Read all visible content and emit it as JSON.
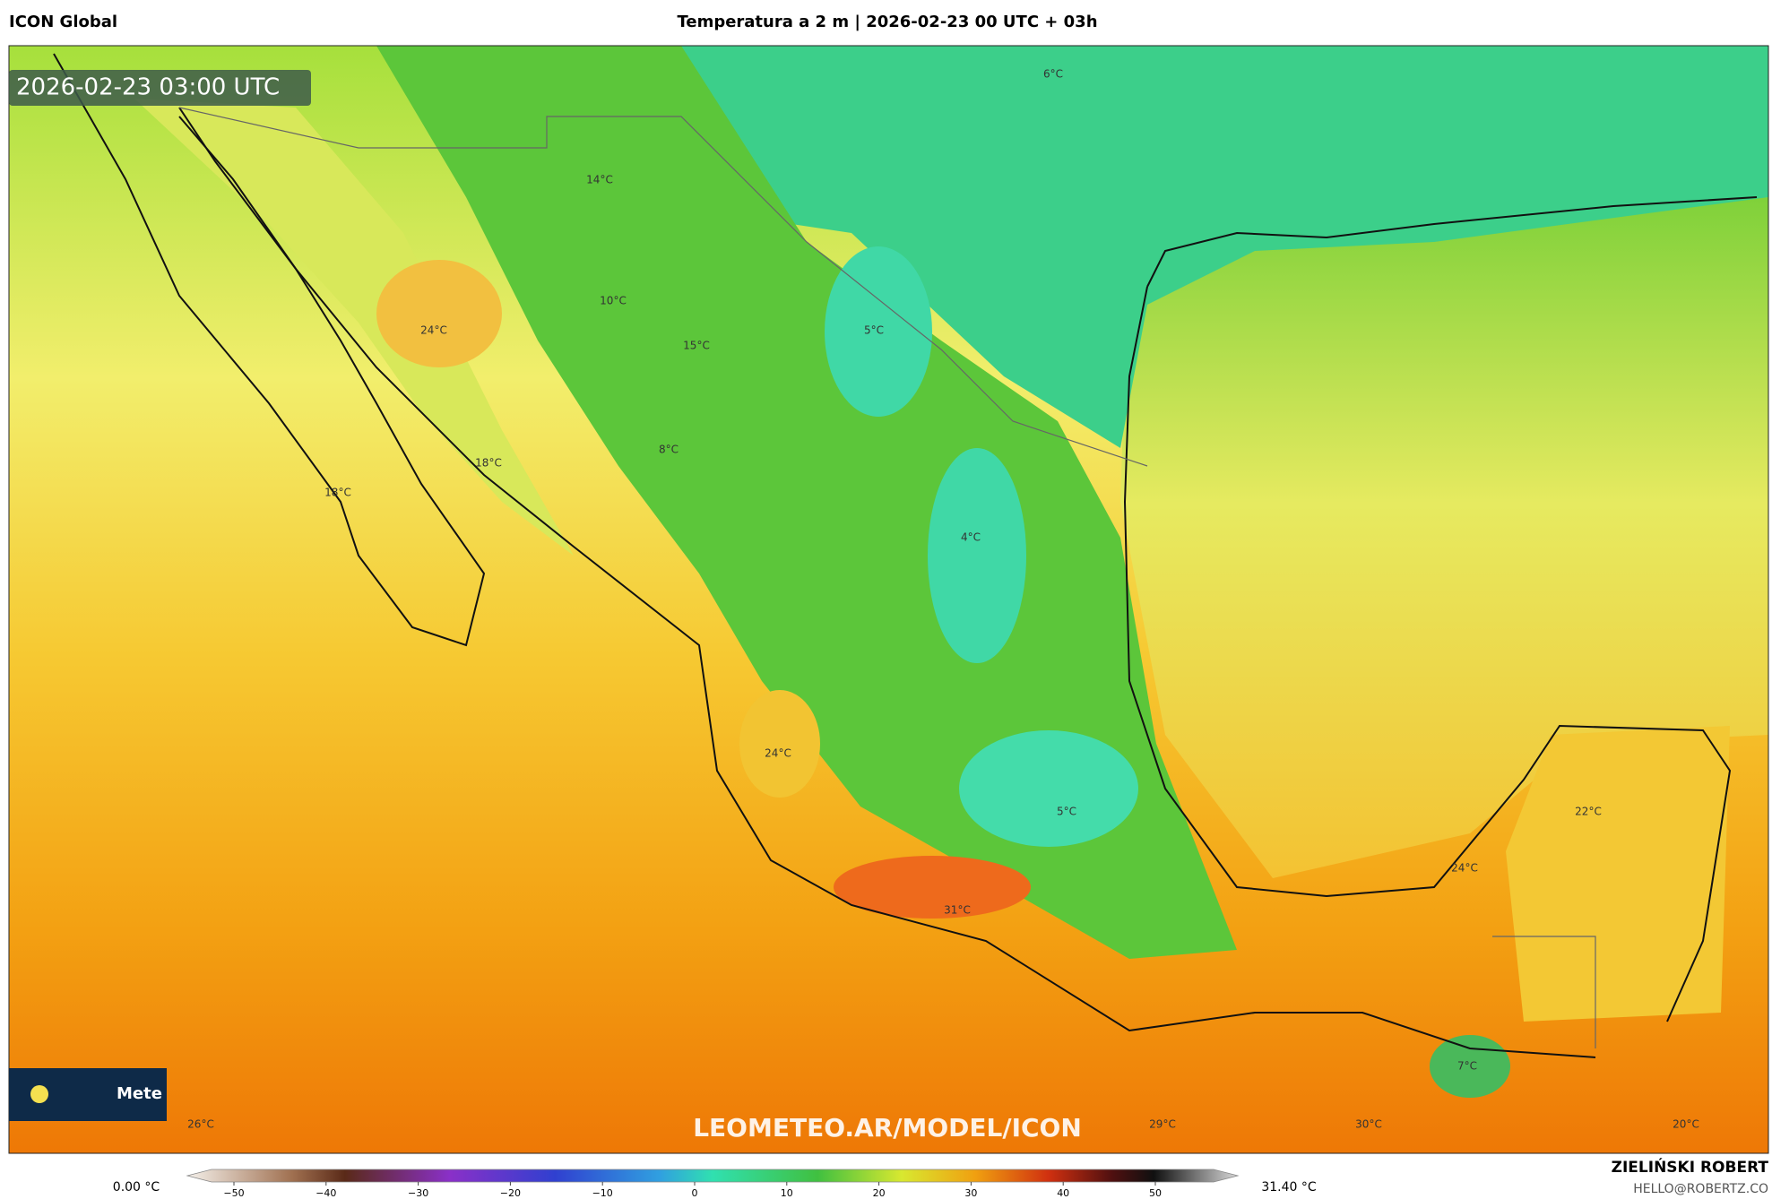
{
  "header": {
    "model": "ICON Global",
    "title": "Temperatura a 2 m | 2026-02-23 00 UTC + 03h"
  },
  "timestamp": "2026-02-23 03:00 UTC",
  "map_labels": [
    "6°C",
    "14°C",
    "10°C",
    "24°C",
    "15°C",
    "5°C",
    "8°C",
    "18°C",
    "18°C",
    "4°C",
    "24°C",
    "5°C",
    "22°C",
    "24°C",
    "31°C",
    "7°C",
    "26°C",
    "29°C",
    "30°C",
    "20°C"
  ],
  "watermark": "LEOMETEO.AR/MODEL/ICON",
  "logo_text": "Mete",
  "colorbar": {
    "min_label": "0.00 °C",
    "max_label": "31.40 °C",
    "ticks": [
      "−50",
      "−40",
      "−30",
      "−20",
      "−10",
      "0",
      "10",
      "20",
      "30",
      "40",
      "50"
    ]
  },
  "credits": {
    "author": "ZIELIŃSKI ROBERT",
    "email": "HELLO@ROBERTZ.CO"
  }
}
